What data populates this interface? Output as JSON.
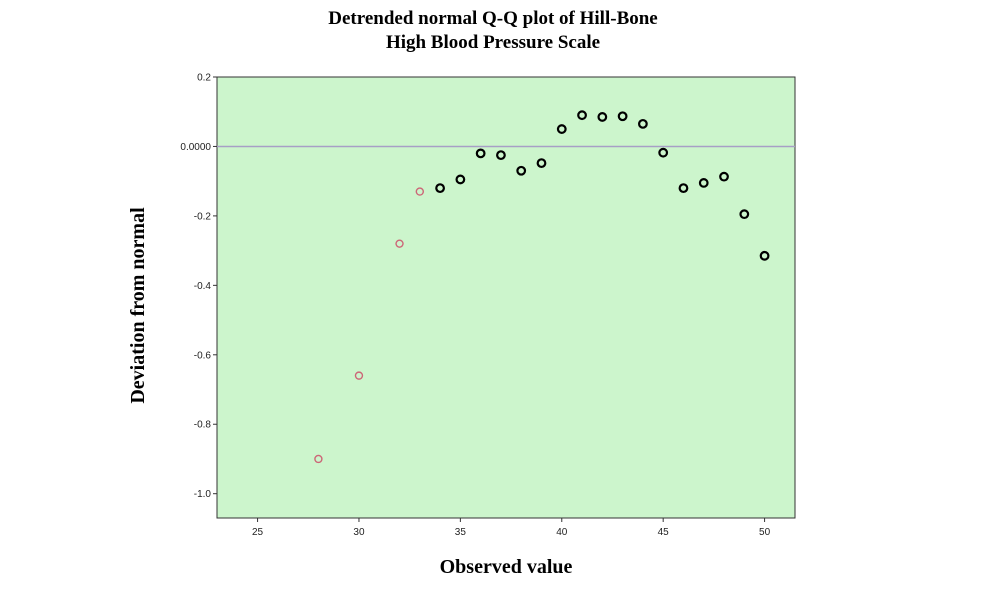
{
  "chart_data": {
    "type": "scatter",
    "title": "Detrended normal Q-Q plot of Hill-Bone",
    "subtitle": "High Blood Pressure Scale",
    "xlabel": "Observed value",
    "ylabel": "Deviation from normal",
    "xlim": [
      23,
      51.5
    ],
    "ylim": [
      -1.07,
      0.2
    ],
    "x_ticks": [
      25,
      30,
      35,
      40,
      45,
      50
    ],
    "x_tick_labels": [
      "25",
      "30",
      "35",
      "40",
      "45",
      "50"
    ],
    "y_ticks": [
      0.2,
      0.0,
      -0.2,
      -0.4,
      -0.6,
      -0.8,
      -1.0
    ],
    "y_tick_labels": [
      "0.2",
      "0.0000",
      "-0.2",
      "-0.4",
      "-0.6",
      "-0.8",
      "-1.0"
    ],
    "reference_line": 0.0,
    "grid": false,
    "colors": {
      "plot_background": "#ccf5cc",
      "reference_line": "#a79fc6",
      "point_highlight": "#cc6677",
      "point_default": "#000000"
    },
    "series": [
      {
        "points": [
          {
            "x": 28,
            "y": -0.9,
            "highlight": true
          },
          {
            "x": 30,
            "y": -0.66,
            "highlight": true
          },
          {
            "x": 32,
            "y": -0.28,
            "highlight": true
          },
          {
            "x": 33,
            "y": -0.13,
            "highlight": true
          },
          {
            "x": 34,
            "y": -0.12,
            "highlight": false
          },
          {
            "x": 35,
            "y": -0.095,
            "highlight": false
          },
          {
            "x": 36,
            "y": -0.02,
            "highlight": false
          },
          {
            "x": 37,
            "y": -0.025,
            "highlight": false
          },
          {
            "x": 38,
            "y": -0.07,
            "highlight": false
          },
          {
            "x": 39,
            "y": -0.048,
            "highlight": false
          },
          {
            "x": 40,
            "y": 0.05,
            "highlight": false
          },
          {
            "x": 41,
            "y": 0.09,
            "highlight": false
          },
          {
            "x": 42,
            "y": 0.085,
            "highlight": false
          },
          {
            "x": 43,
            "y": 0.087,
            "highlight": false
          },
          {
            "x": 44,
            "y": 0.065,
            "highlight": false
          },
          {
            "x": 45,
            "y": -0.018,
            "highlight": false
          },
          {
            "x": 46,
            "y": -0.12,
            "highlight": false
          },
          {
            "x": 47,
            "y": -0.105,
            "highlight": false
          },
          {
            "x": 48,
            "y": -0.087,
            "highlight": false
          },
          {
            "x": 49,
            "y": -0.195,
            "highlight": false
          },
          {
            "x": 50,
            "y": -0.315,
            "highlight": false
          }
        ]
      }
    ]
  }
}
